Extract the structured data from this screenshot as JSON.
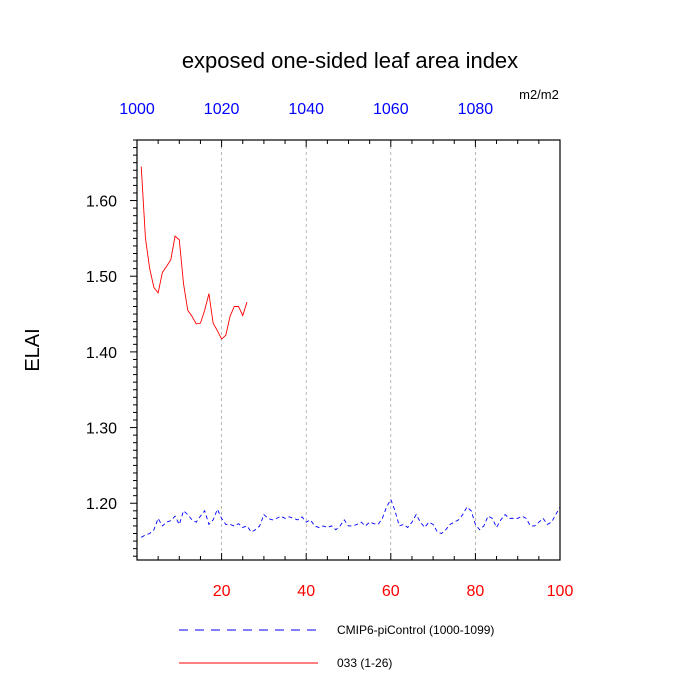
{
  "chart_data": {
    "type": "line",
    "title": "exposed one-sided leaf area index",
    "units": "m2/m2",
    "ylabel": "ELAI",
    "xlabel": "",
    "xlim": [
      0,
      100
    ],
    "ylim": [
      1.125,
      1.68
    ],
    "grid": "dashed vertical at bottom ticks",
    "bottom_axis": {
      "ticks": [
        20,
        40,
        60,
        80,
        100
      ],
      "tick_labels": [
        "20",
        "40",
        "60",
        "80",
        "100"
      ],
      "color": "#ff0000"
    },
    "top_axis": {
      "ticks": [
        0,
        20,
        40,
        60,
        80
      ],
      "tick_labels": [
        "1000",
        "1020",
        "1040",
        "1060",
        "1080"
      ],
      "color": "#0000ff"
    },
    "left_axis": {
      "ticks": [
        1.2,
        1.3,
        1.4,
        1.5,
        1.6
      ],
      "tick_labels": [
        "1.20",
        "1.30",
        "1.40",
        "1.50",
        "1.60"
      ]
    },
    "series": [
      {
        "name": "CMIP6-piControl (1000-1099)",
        "color": "#0000ff",
        "dash": "dashed",
        "x": [
          1,
          2,
          3,
          4,
          5,
          6,
          7,
          8,
          9,
          10,
          11,
          12,
          13,
          14,
          15,
          16,
          17,
          18,
          19,
          20,
          21,
          22,
          23,
          24,
          25,
          26,
          27,
          28,
          29,
          30,
          31,
          32,
          33,
          34,
          35,
          36,
          37,
          38,
          39,
          40,
          41,
          42,
          43,
          44,
          45,
          46,
          47,
          48,
          49,
          50,
          51,
          52,
          53,
          54,
          55,
          56,
          57,
          58,
          59,
          60,
          61,
          62,
          63,
          64,
          65,
          66,
          67,
          68,
          69,
          70,
          71,
          72,
          73,
          74,
          75,
          76,
          77,
          78,
          79,
          80,
          81,
          82,
          83,
          84,
          85,
          86,
          87,
          88,
          89,
          90,
          91,
          92,
          93,
          94,
          95,
          96,
          97,
          98,
          99,
          100
        ],
        "y": [
          1.155,
          1.158,
          1.16,
          1.165,
          1.18,
          1.17,
          1.175,
          1.177,
          1.183,
          1.172,
          1.19,
          1.185,
          1.178,
          1.175,
          1.183,
          1.19,
          1.172,
          1.178,
          1.192,
          1.18,
          1.172,
          1.172,
          1.17,
          1.173,
          1.168,
          1.17,
          1.162,
          1.165,
          1.17,
          1.185,
          1.18,
          1.178,
          1.18,
          1.183,
          1.18,
          1.182,
          1.18,
          1.178,
          1.182,
          1.175,
          1.178,
          1.17,
          1.168,
          1.17,
          1.168,
          1.17,
          1.165,
          1.17,
          1.178,
          1.17,
          1.17,
          1.172,
          1.175,
          1.17,
          1.175,
          1.173,
          1.172,
          1.18,
          1.195,
          1.205,
          1.19,
          1.17,
          1.172,
          1.168,
          1.175,
          1.185,
          1.175,
          1.168,
          1.175,
          1.172,
          1.162,
          1.16,
          1.165,
          1.172,
          1.175,
          1.178,
          1.185,
          1.195,
          1.19,
          1.172,
          1.165,
          1.17,
          1.183,
          1.18,
          1.168,
          1.178,
          1.185,
          1.18,
          1.18,
          1.18,
          1.183,
          1.18,
          1.17,
          1.17,
          1.175,
          1.18,
          1.172,
          1.175,
          1.185,
          1.195
        ]
      },
      {
        "name": "033 (1-26)",
        "color": "#ff0000",
        "dash": "solid",
        "x": [
          1,
          2,
          3,
          4,
          5,
          6,
          7,
          8,
          9,
          10,
          11,
          12,
          13,
          14,
          15,
          16,
          17,
          18,
          19,
          20,
          21,
          22,
          23,
          24,
          25,
          26
        ],
        "y": [
          1.645,
          1.55,
          1.51,
          1.485,
          1.478,
          1.505,
          1.513,
          1.522,
          1.553,
          1.548,
          1.49,
          1.455,
          1.447,
          1.437,
          1.438,
          1.455,
          1.477,
          1.438,
          1.428,
          1.417,
          1.422,
          1.447,
          1.46,
          1.46,
          1.448,
          1.466
        ]
      }
    ],
    "legend": {
      "placement": "bottom",
      "entries": [
        "CMIP6-piControl (1000-1099)",
        "033 (1-26)"
      ]
    }
  }
}
